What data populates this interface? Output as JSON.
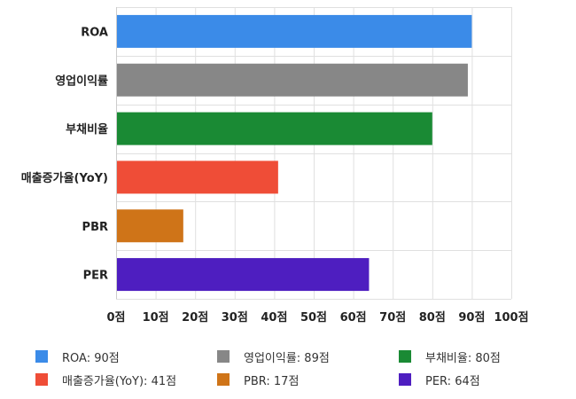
{
  "chart_data": {
    "type": "bar",
    "orientation": "horizontal",
    "categories": [
      "ROA",
      "영업이익률",
      "부채비율",
      "매출증가율(YoY)",
      "PBR",
      "PER"
    ],
    "values": [
      90,
      89,
      80,
      41,
      17,
      64
    ],
    "colors": [
      "#3b8be8",
      "#878787",
      "#1a8a34",
      "#ef4d37",
      "#cf7418",
      "#4e1ec0"
    ],
    "xlim": [
      0,
      100
    ],
    "xticks": [
      "0점",
      "10점",
      "20점",
      "30점",
      "40점",
      "50점",
      "60점",
      "70점",
      "80점",
      "90점",
      "100점"
    ],
    "grid": true,
    "legend_position": "bottom",
    "legend": [
      "ROA: 90점",
      "영업이익률: 89점",
      "부채비율: 80점",
      "매출증가율(YoY): 41점",
      "PBR: 17점",
      "PER: 64점"
    ]
  }
}
